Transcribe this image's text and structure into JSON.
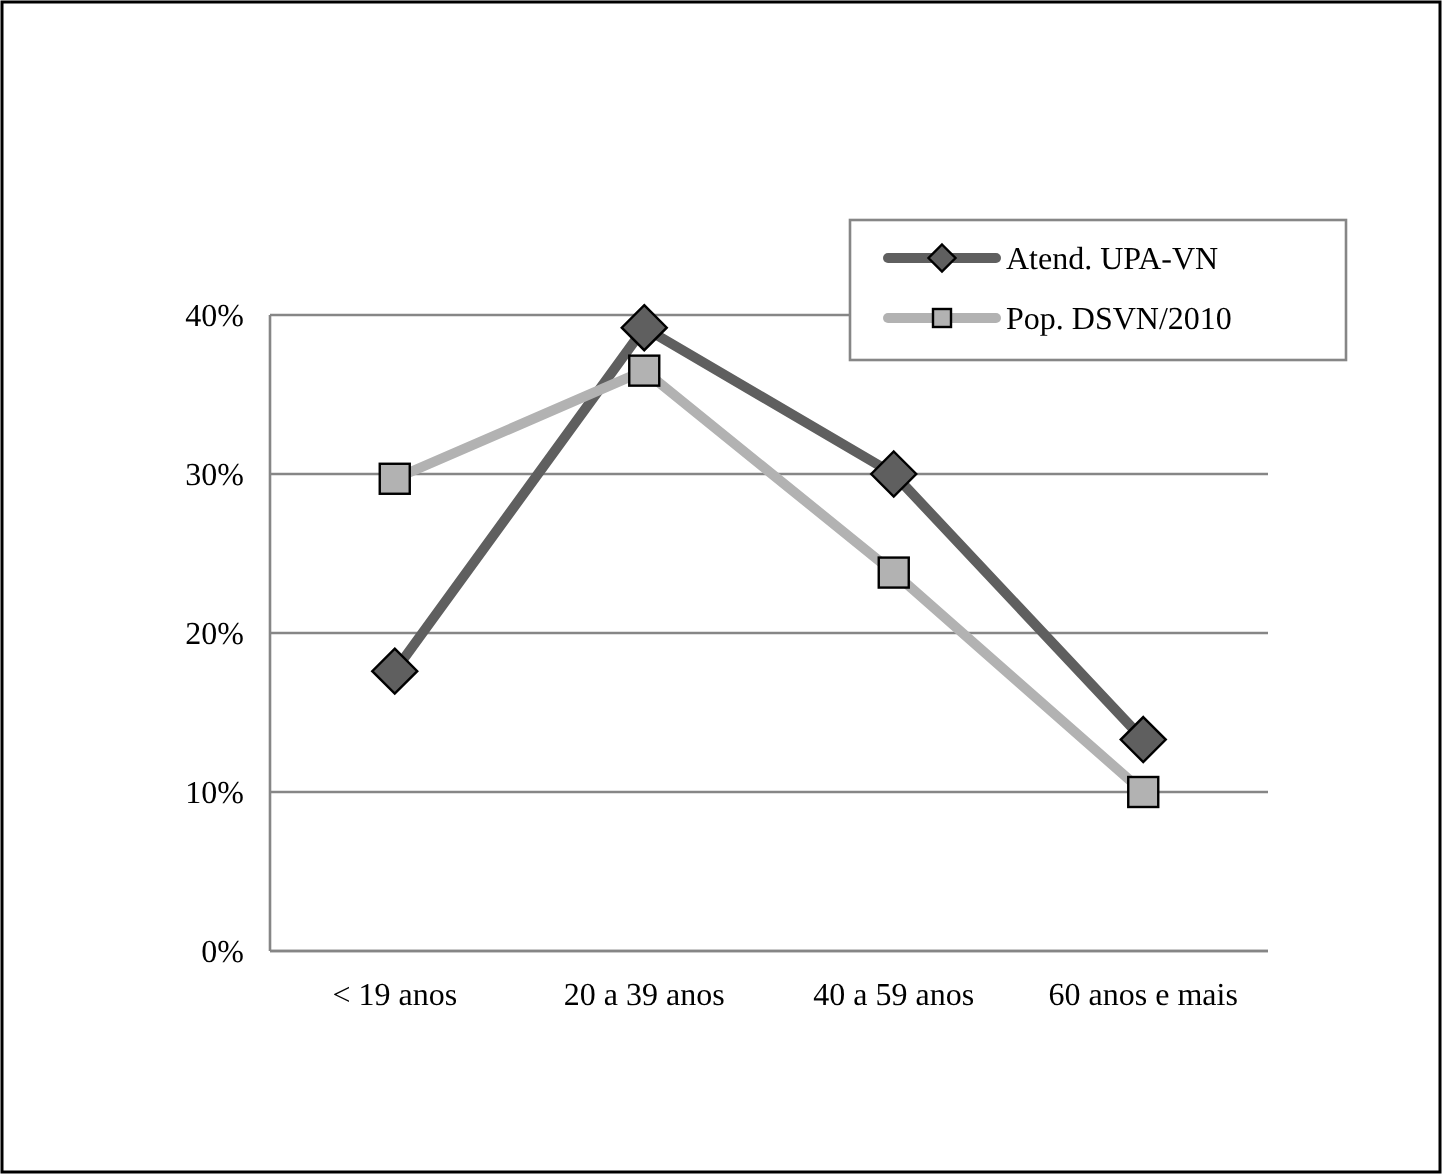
{
  "chart_data": {
    "type": "line",
    "categories": [
      "< 19 anos",
      "20 a 39 anos",
      "40 a 59 anos",
      "60 anos e mais"
    ],
    "series": [
      {
        "name": "Atend. UPA-VN",
        "color": "#5f5f5f",
        "marker": "diamond",
        "values": [
          17.6,
          39.2,
          30.0,
          13.3
        ]
      },
      {
        "name": "Pop. DSVN/2010",
        "color": "#b2b2b2",
        "marker": "square",
        "values": [
          29.7,
          36.5,
          23.8,
          10.0
        ]
      }
    ],
    "ylim": [
      0,
      40
    ],
    "yticks": [
      {
        "value": 0,
        "label": "0%"
      },
      {
        "value": 10,
        "label": "10%"
      },
      {
        "value": 20,
        "label": "20%"
      },
      {
        "value": 30,
        "label": "30%"
      },
      {
        "value": 40,
        "label": "40%"
      }
    ],
    "grid": "y",
    "legend": "top right"
  }
}
